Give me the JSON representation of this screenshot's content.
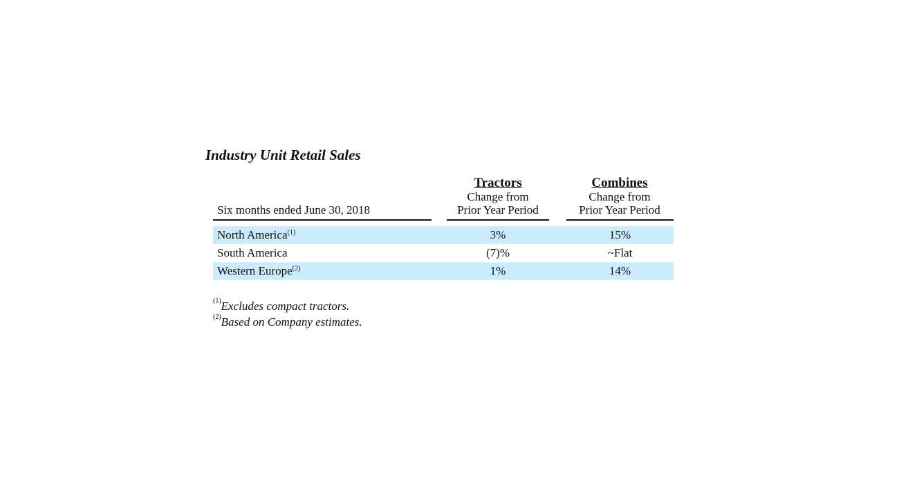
{
  "title": "Industry Unit Retail Sales",
  "header": {
    "period_label": "Six months ended June 30, 2018",
    "columns": [
      {
        "name": "Tractors",
        "sub1": "Change from",
        "sub2": "Prior Year Period"
      },
      {
        "name": "Combines",
        "sub1": "Change from",
        "sub2": "Prior Year Period"
      }
    ]
  },
  "rows": [
    {
      "label": "North America",
      "note": "(1)",
      "tractors": "3%",
      "combines": "15%",
      "shaded": true
    },
    {
      "label": "South America",
      "note": "",
      "tractors": "(7)%",
      "combines": "~Flat",
      "shaded": false
    },
    {
      "label": "Western Europe",
      "note": "(2)",
      "tractors": "1%",
      "combines": "14%",
      "shaded": true
    }
  ],
  "footnotes": [
    {
      "marker": "(1)",
      "text": "Excludes compact tractors."
    },
    {
      "marker": "(2)",
      "text": "Based on Company estimates."
    }
  ]
}
